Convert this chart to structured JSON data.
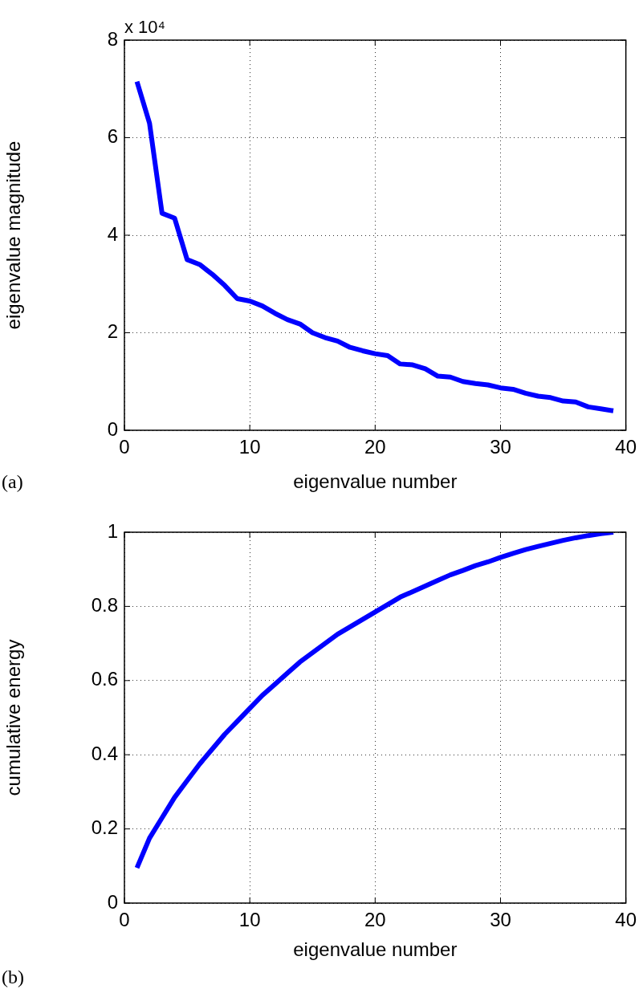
{
  "chart_data": [
    {
      "type": "line",
      "xlabel": "eigenvalue number",
      "ylabel": "eigenvalue magnitude",
      "annotations": [
        "x 10⁴",
        "(a)"
      ],
      "x": [
        1,
        2,
        3,
        4,
        5,
        6,
        7,
        8,
        9,
        10,
        11,
        12,
        13,
        14,
        15,
        16,
        17,
        18,
        19,
        20,
        21,
        22,
        23,
        24,
        25,
        26,
        27,
        28,
        29,
        30,
        31,
        32,
        33,
        34,
        35,
        36,
        37,
        38,
        39
      ],
      "series": [
        {
          "color": "#0000ff",
          "values": [
            7.15,
            6.3,
            4.45,
            4.35,
            3.5,
            3.4,
            3.2,
            2.97,
            2.7,
            2.65,
            2.55,
            2.4,
            2.27,
            2.18,
            2,
            1.9,
            1.83,
            1.7,
            1.63,
            1.57,
            1.53,
            1.36,
            1.34,
            1.26,
            1.11,
            1.09,
            1,
            0.96,
            0.93,
            0.87,
            0.84,
            0.76,
            0.7,
            0.67,
            0.6,
            0.58,
            0.48,
            0.44,
            0.4
          ]
        }
      ],
      "xlim": [
        0,
        40
      ],
      "xticks": [
        0,
        10,
        20,
        30,
        40
      ],
      "ylim": [
        0,
        8
      ],
      "yticks": [
        0,
        2,
        4,
        6,
        8
      ],
      "grid": true,
      "marker": "none",
      "line_style": "solid"
    },
    {
      "type": "line",
      "xlabel": "eigenvalue number",
      "ylabel": "cumulative energy",
      "annotations": [
        "(b)"
      ],
      "x": [
        1,
        2,
        3,
        4,
        5,
        6,
        7,
        8,
        9,
        10,
        11,
        12,
        13,
        14,
        15,
        16,
        17,
        18,
        19,
        20,
        21,
        22,
        23,
        24,
        25,
        26,
        27,
        28,
        29,
        30,
        31,
        32,
        33,
        34,
        35,
        36,
        37,
        38,
        39
      ],
      "series": [
        {
          "color": "#0000ff",
          "values": [
            0.095,
            0.175,
            0.23,
            0.285,
            0.33,
            0.375,
            0.415,
            0.455,
            0.49,
            0.525,
            0.56,
            0.59,
            0.62,
            0.65,
            0.675,
            0.7,
            0.725,
            0.745,
            0.765,
            0.785,
            0.805,
            0.825,
            0.84,
            0.855,
            0.87,
            0.885,
            0.897,
            0.91,
            0.92,
            0.932,
            0.943,
            0.953,
            0.962,
            0.97,
            0.978,
            0.985,
            0.991,
            0.996,
            1
          ]
        }
      ],
      "xlim": [
        0,
        40
      ],
      "xticks": [
        0,
        10,
        20,
        30,
        40
      ],
      "ylim": [
        0,
        1
      ],
      "yticks": [
        0,
        0.2,
        0.4,
        0.6,
        0.8,
        1
      ],
      "grid": true,
      "marker": "none",
      "line_style": "solid"
    }
  ]
}
